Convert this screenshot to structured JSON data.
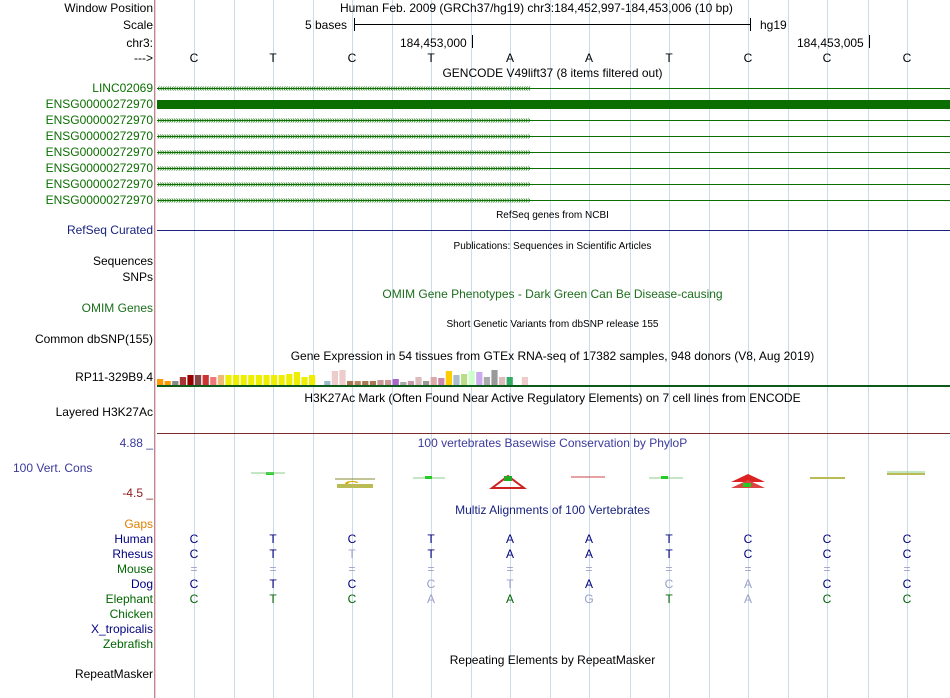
{
  "header": {
    "window_position_label": "Window Position",
    "window_position_value": "Human Feb. 2009 (GRCh37/hg19)   chr3:184,452,997-184,453,006 (10 bp)",
    "scale_label": "Scale",
    "scale_value": "5 bases",
    "scale_assembly": "hg19",
    "chrom_label": "chr3:",
    "coord_1": "184,453,000",
    "coord_2": "184,453,005",
    "strand_label": "--->",
    "bases": [
      "C",
      "T",
      "C",
      "T",
      "A",
      "A",
      "T",
      "C",
      "C",
      "C"
    ]
  },
  "gencode": {
    "title": "GENCODE V49lift37 (8 items filtered out)",
    "items": [
      "LINC02069",
      "ENSG00000272970",
      "ENSG00000272970",
      "ENSG00000272970",
      "ENSG00000272970",
      "ENSG00000272970",
      "ENSG00000272970",
      "ENSG00000272970"
    ]
  },
  "refseq": {
    "title": "RefSeq genes from NCBI",
    "label": "RefSeq Curated"
  },
  "publications": {
    "title": "Publications: Sequences in Scientific Articles",
    "label1": "Sequences",
    "label2": "SNPs"
  },
  "omim": {
    "title": "OMIM Gene Phenotypes - Dark Green Can Be Disease-causing",
    "label": "OMIM Genes"
  },
  "dbsnp": {
    "title": "Short Genetic Variants from dbSNP release 155",
    "label": "Common dbSNP(155)"
  },
  "gtex": {
    "title": "Gene Expression in 54 tissues from GTEx RNA-seq of 17382 samples, 948 donors (V8, Aug 2019)",
    "label": "RP11-329B9.4",
    "bars": [
      {
        "v": 0.45,
        "c": "#ff9900"
      },
      {
        "v": 0.3,
        "c": "#ff9900"
      },
      {
        "v": 0.3,
        "c": "#888888"
      },
      {
        "v": 0.6,
        "c": "#aa3333"
      },
      {
        "v": 0.7,
        "c": "#990000"
      },
      {
        "v": 0.7,
        "c": "#884444"
      },
      {
        "v": 0.7,
        "c": "#cc3333"
      },
      {
        "v": 0.6,
        "c": "#ee7777"
      },
      {
        "v": 0.7,
        "c": "#eebb77"
      },
      {
        "v": 0.7,
        "c": "#eeee00"
      },
      {
        "v": 0.7,
        "c": "#eeee00"
      },
      {
        "v": 0.7,
        "c": "#eeee00"
      },
      {
        "v": 0.7,
        "c": "#eeee00"
      },
      {
        "v": 0.7,
        "c": "#eeee00"
      },
      {
        "v": 0.7,
        "c": "#eeee00"
      },
      {
        "v": 0.7,
        "c": "#eeee00"
      },
      {
        "v": 0.7,
        "c": "#eeee00"
      },
      {
        "v": 0.8,
        "c": "#eeee00"
      },
      {
        "v": 0.95,
        "c": "#eeee00"
      },
      {
        "v": 0.6,
        "c": "#eeee00"
      },
      {
        "v": 0.7,
        "c": "#eeee00"
      },
      {
        "v": 0.0,
        "c": "#ffffff"
      },
      {
        "v": 0.3,
        "c": "#99bbcc"
      },
      {
        "v": 1.0,
        "c": "#eecccc"
      },
      {
        "v": 1.1,
        "c": "#eecccc"
      },
      {
        "v": 0.3,
        "c": "#aa7755"
      },
      {
        "v": 0.25,
        "c": "#bb8866"
      },
      {
        "v": 0.3,
        "c": "#aa7755"
      },
      {
        "v": 0.3,
        "c": "#aa7755"
      },
      {
        "v": 0.35,
        "c": "#cc9999"
      },
      {
        "v": 0.35,
        "c": "#cc9999"
      },
      {
        "v": 0.45,
        "c": "#aa66cc"
      },
      {
        "v": 0.2,
        "c": "#aaaaaa"
      },
      {
        "v": 0.3,
        "c": "#cc99aa"
      },
      {
        "v": 0.6,
        "c": "#ddbbbb"
      },
      {
        "v": 0.3,
        "c": "#999999"
      },
      {
        "v": 0.6,
        "c": "#ddaaaa"
      },
      {
        "v": 0.5,
        "c": "#cc88aa"
      },
      {
        "v": 1.0,
        "c": "#ffcc00"
      },
      {
        "v": 0.7,
        "c": "#aabbcc"
      },
      {
        "v": 0.8,
        "c": "#bbdd88"
      },
      {
        "v": 1.0,
        "c": "#ccffcc"
      },
      {
        "v": 0.9,
        "c": "#ccaaee"
      },
      {
        "v": 0.6,
        "c": "#aaaaaa"
      },
      {
        "v": 1.1,
        "c": "#999999"
      },
      {
        "v": 0.6,
        "c": "#ddbbbb"
      },
      {
        "v": 0.6,
        "c": "#33aa66"
      },
      {
        "v": 0.0,
        "c": "#ffffff"
      },
      {
        "v": 0.6,
        "c": "#eecccc"
      }
    ]
  },
  "h3k27ac": {
    "title": "H3K27Ac Mark (Often Found Near Active Regulatory Elements) on 7 cell lines from ENCODE",
    "label": "Layered H3K27Ac"
  },
  "phylop": {
    "title": "100 vertebrates Basewise Conservation by PhyloP",
    "label": "100 Vert. Cons",
    "max": "4.88 _",
    "min": "-4.5 _"
  },
  "multiz": {
    "title": "Multiz Alignments of 100 Vertebrates",
    "gaps_label": "Gaps",
    "species": [
      {
        "name": "Human",
        "color": "#000080",
        "bases": [
          "C",
          "T",
          "C",
          "T",
          "A",
          "A",
          "T",
          "C",
          "C",
          "C"
        ],
        "faded": [
          0,
          0,
          0,
          0,
          0,
          0,
          0,
          0,
          0,
          0
        ]
      },
      {
        "name": "Rhesus",
        "color": "#000080",
        "bases": [
          "C",
          "T",
          "T",
          "T",
          "A",
          "A",
          "T",
          "C",
          "C",
          "C"
        ],
        "faded": [
          0,
          0,
          1,
          0,
          0,
          0,
          0,
          0,
          0,
          0
        ]
      },
      {
        "name": "Mouse",
        "color": "#006600",
        "bases": [
          "=",
          "=",
          "=",
          "=",
          "=",
          "=",
          "=",
          "=",
          "=",
          "="
        ],
        "faded": [
          1,
          1,
          1,
          1,
          1,
          1,
          1,
          1,
          1,
          1
        ]
      },
      {
        "name": "Dog",
        "color": "#000080",
        "bases": [
          "C",
          "T",
          "C",
          "C",
          "T",
          "A",
          "C",
          "A",
          "C",
          "C"
        ],
        "faded": [
          0,
          0,
          0,
          1,
          1,
          0,
          1,
          1,
          0,
          0
        ]
      },
      {
        "name": "Elephant",
        "color": "#006600",
        "bases": [
          "C",
          "T",
          "C",
          "A",
          "A",
          "G",
          "T",
          "A",
          "C",
          "C"
        ],
        "faded": [
          0,
          0,
          0,
          1,
          0,
          1,
          0,
          1,
          0,
          0
        ]
      },
      {
        "name": "Chicken",
        "color": "#006600",
        "bases": [],
        "faded": []
      },
      {
        "name": "X_tropicalis",
        "color": "#000080",
        "bases": [],
        "faded": []
      },
      {
        "name": "Zebrafish",
        "color": "#006600",
        "bases": [],
        "faded": []
      }
    ]
  },
  "repeatmasker": {
    "title": "Repeating Elements by RepeatMasker",
    "label": "RepeatMasker"
  }
}
